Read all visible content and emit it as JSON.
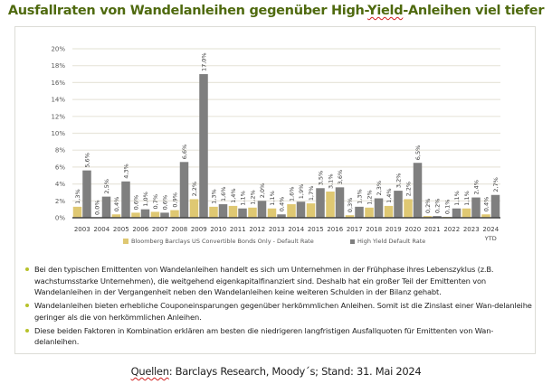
{
  "title": {
    "before": "Ausfallraten von Wandelanleihen gegenüber High-",
    "marked": "Yield",
    "after": "-Anleihen viel tiefer"
  },
  "chart_data": {
    "type": "bar",
    "title": "",
    "xlabel": "",
    "ylabel": "",
    "ylim": [
      0,
      20
    ],
    "yticks": [
      "0%",
      "2%",
      "4%",
      "6%",
      "8%",
      "10%",
      "12%",
      "14%",
      "16%",
      "18%",
      "20%"
    ],
    "grid": true,
    "legend_position": "bottom",
    "categories": [
      "2003",
      "2004",
      "2005",
      "2006",
      "2007",
      "2008",
      "2009",
      "2010",
      "2011",
      "2012",
      "2013",
      "2014",
      "2015",
      "2016",
      "2017",
      "2018",
      "2019",
      "2020",
      "2021",
      "2022",
      "2023",
      "2024"
    ],
    "category_sublabels": {
      "2024": "YTD"
    },
    "series": [
      {
        "name": "Bloomberg Barclays US Convertible Bonds Only - Default Rate",
        "color": "#dfc872",
        "values": [
          1.3,
          0.0,
          0.4,
          0.6,
          0.7,
          0.9,
          2.2,
          1.3,
          1.4,
          1.2,
          1.1,
          1.6,
          1.7,
          3.1,
          0.3,
          1.2,
          1.4,
          2.2,
          0.2,
          0.1,
          1.1,
          0.4
        ],
        "labels": [
          "1,3%",
          "0,0%",
          "0,4%",
          "0,6%",
          "0,7%",
          "0,9%",
          "2,2%",
          "1,3%",
          "1,4%",
          "1,2%",
          "1,1%",
          "1,6%",
          "1,7%",
          "3,1%",
          "0,3%",
          "1,2%",
          "1,4%",
          "2,2%",
          "0,2%",
          "0,1%",
          "1,1%",
          "0,4%"
        ]
      },
      {
        "name": "High Yield Default Rate",
        "color": "#7f7f7f",
        "values": [
          5.6,
          2.5,
          4.3,
          1.0,
          0.6,
          6.6,
          17.0,
          1.6,
          1.1,
          2.0,
          0.4,
          1.9,
          3.5,
          3.6,
          1.3,
          2.3,
          3.2,
          6.5,
          0.2,
          1.1,
          2.4,
          2.7
        ],
        "labels": [
          "5,6%",
          "2,5%",
          "4,3%",
          "1,0%",
          "0,6%",
          "6,6%",
          "17,0%",
          "1,6%",
          "1,1%",
          "2,0%",
          "0,4%",
          "1,9%",
          "3,5%",
          "3,6%",
          "1,3%",
          "2,3%",
          "3,2%",
          "6,5%",
          "0,2%",
          "1,1%",
          "2,4%",
          "2,7%"
        ]
      }
    ]
  },
  "legend": {
    "items": [
      {
        "label": "Bloomberg Barclays US Convertible Bonds Only - Default Rate",
        "color": "#dfc872"
      },
      {
        "label": "High Yield Default Rate",
        "color": "#7f7f7f"
      }
    ]
  },
  "bullets": [
    "Bei den typischen Emittenten von Wandelanleihen handelt es sich um Unternehmen in der Frühphase ihres Lebenszyklus (z.B. wachstumsstarke Unternehmen), die weitgehend eigenkapitalfinanziert sind. Deshalb hat ein großer Teil der Emittenten von Wandelanleihen in der Vergangenheit neben den Wandelanleihen keine weiteren Schulden in der Bilanz gehabt.",
    "Wandelanleihen bieten erhebliche Couponeinsparungen gegenüber herkömmlichen Anleihen. Somit ist die Zinslast einer Wan-delanleihe geringer als die von herkömmlichen Anleihen.",
    "Diese beiden Faktoren in Kombination erklären am besten die niedrigeren langfristigen Ausfallquoten für Emittenten von Wan-delanleihen."
  ],
  "source": {
    "marked": "Quellen",
    "rest": ": Barclays Research, Moody´s; Stand: 31. Mai 2024"
  }
}
